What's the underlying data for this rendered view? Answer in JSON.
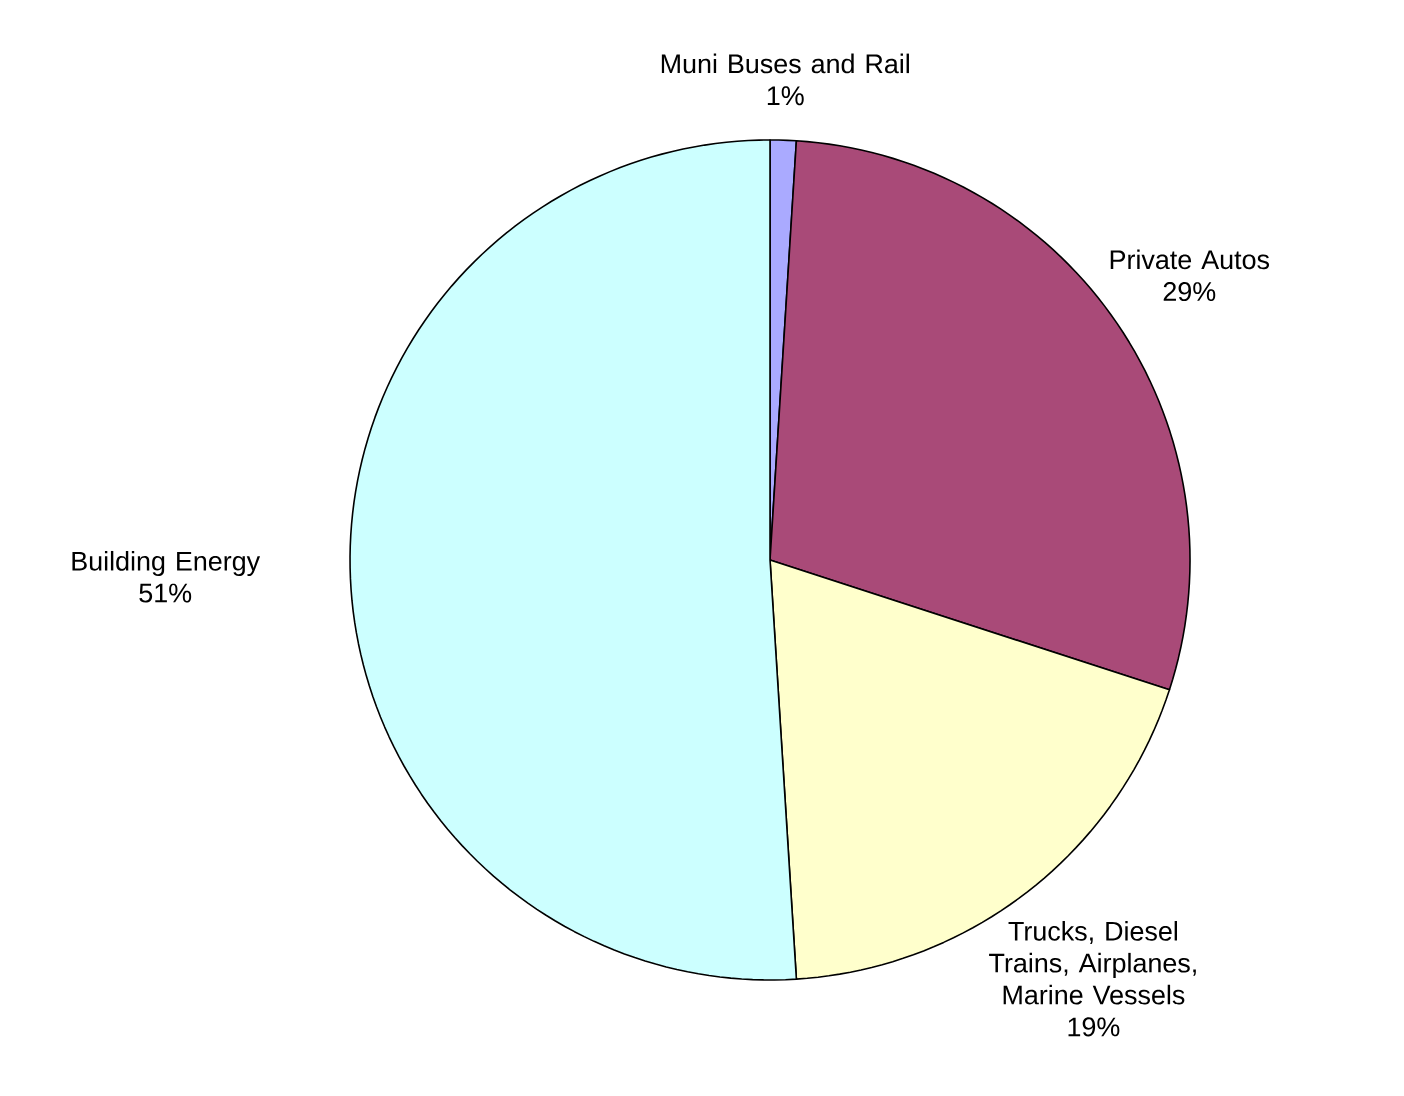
{
  "chart_data": {
    "type": "pie",
    "categories": [
      "Muni Buses and Rail",
      "Private Autos",
      "Trucks, Diesel Trains, Airplanes, Marine Vessels",
      "Building Energy"
    ],
    "values": [
      1,
      29,
      19,
      51
    ],
    "colors": [
      "#aaaaff",
      "#a94a78",
      "#ffffcc",
      "#ccffff"
    ],
    "value_labels": [
      "1%",
      "29%",
      "19%",
      "51%"
    ]
  }
}
